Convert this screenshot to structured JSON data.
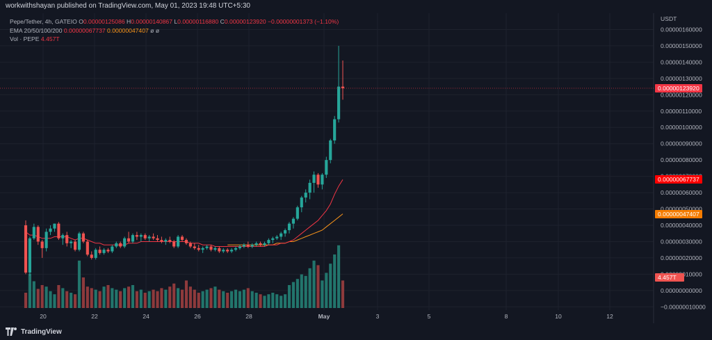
{
  "header": {
    "published": "workwithshayan published on TradingView.com, May 01, 2023 19:48 UTC+5:30"
  },
  "legend": {
    "symbol": "Pepe/Tether, 4h, GATEIO",
    "o_label": "O",
    "o_value": "0.00000125086",
    "h_label": "H",
    "h_value": "0.00000140867",
    "l_label": "L",
    "l_value": "0.00000116880",
    "c_label": "C",
    "c_value": "0.00000123920",
    "change": "−0.00000001373 (−1.10%)",
    "ema_label": "EMA 20/50/100/200",
    "ema_value1": "0.00000067737",
    "ema_value2": "0.00000047407",
    "ema_empty1": "ø",
    "ema_empty2": "ø",
    "vol_label": "Vol · PEPE",
    "vol_value": "4.457T"
  },
  "price_axis": {
    "currency": "USDT",
    "ticks": [
      "0.00000160000",
      "0.00000150000",
      "0.00000140000",
      "0.00000130000",
      "0.00000120000",
      "0.00000110000",
      "0.00000100000",
      "0.00000090000",
      "0.00000080000",
      "0.00000070000",
      "0.00000060000",
      "0.00000050000",
      "0.00000040000",
      "0.00000030000",
      "0.00000020000",
      "0.00000010000",
      "0.00000000000",
      "−0.00000010000"
    ]
  },
  "tags": {
    "last_price": "0.00000123920",
    "ema20": "0.00000067737",
    "ema50": "0.00000047407",
    "volume": "4.457T"
  },
  "colors": {
    "up": "#26a69a",
    "down": "#ef5350",
    "vol_up": "#22756c",
    "vol_down": "#8e3a3c",
    "ema20": "#f23645",
    "ema50": "#f7931a",
    "last_price_tag": "#f23645",
    "ema20_tag": "#ff0000",
    "ema50_tag": "#f57c00",
    "volume_tag": "#ef5350"
  },
  "footer": {
    "brand": "TradingView"
  },
  "chart_data": {
    "type": "candlestick",
    "timeframe": "4h",
    "x_ticks": [
      "20",
      "22",
      "24",
      "26",
      "28",
      "May",
      "3",
      "5",
      "8",
      "10",
      "12"
    ],
    "ylim": [
      -1.2e-07,
      1.7e-06
    ],
    "candles": [
      [
        4e-07,
        4.3e-07,
        1e-07,
        1.1e-07
      ],
      [
        1.1e-07,
        3.3e-07,
        9e-08,
        3.2e-07
      ],
      [
        3.2e-07,
        4.1e-07,
        3.1e-07,
        3.9e-07
      ],
      [
        3.9e-07,
        4e-07,
        2.8e-07,
        3e-07
      ],
      [
        3e-07,
        3.1e-07,
        2e-07,
        2.6e-07
      ],
      [
        2.6e-07,
        3.8e-07,
        2.4e-07,
        3.6e-07
      ],
      [
        3.6e-07,
        4e-07,
        3.4e-07,
        3.8e-07
      ],
      [
        3.8e-07,
        4.1e-07,
        3.6e-07,
        4.1e-07
      ],
      [
        4.1e-07,
        4.2e-07,
        3.1e-07,
        3.2e-07
      ],
      [
        3.2e-07,
        3.5e-07,
        2.8e-07,
        3.4e-07
      ],
      [
        3.4e-07,
        3.6e-07,
        2.7e-07,
        2.9e-07
      ],
      [
        2.9e-07,
        3.1e-07,
        2.6e-07,
        3e-07
      ],
      [
        3e-07,
        3.1e-07,
        2.4e-07,
        2.5e-07
      ],
      [
        2.5e-07,
        3.6e-07,
        2.4e-07,
        3.5e-07
      ],
      [
        3.5e-07,
        3.6e-07,
        2.9e-07,
        3e-07
      ],
      [
        3e-07,
        3.1e-07,
        2.1e-07,
        2.2e-07
      ],
      [
        2.2e-07,
        2.4e-07,
        1.9e-07,
        2e-07
      ],
      [
        2e-07,
        2.6e-07,
        1.9e-07,
        2.5e-07
      ],
      [
        2.5e-07,
        2.7e-07,
        2.2e-07,
        2.3e-07
      ],
      [
        2.3e-07,
        2.6e-07,
        2.2e-07,
        2.5e-07
      ],
      [
        2.5e-07,
        2.6e-07,
        2.3e-07,
        2.4e-07
      ],
      [
        2.4e-07,
        2.8e-07,
        2.3e-07,
        2.7e-07
      ],
      [
        2.7e-07,
        3e-07,
        2.6e-07,
        2.9e-07
      ],
      [
        2.9e-07,
        3e-07,
        2.6e-07,
        2.7e-07
      ],
      [
        2.7e-07,
        3.3e-07,
        2.6e-07,
        3.2e-07
      ],
      [
        3.2e-07,
        3.6e-07,
        2.9e-07,
        3e-07
      ],
      [
        3e-07,
        3.5e-07,
        2.9e-07,
        3.4e-07
      ],
      [
        3.4e-07,
        3.6e-07,
        3.1e-07,
        3.3e-07
      ],
      [
        3.3e-07,
        3.5e-07,
        3e-07,
        3.4e-07
      ],
      [
        3.4e-07,
        3.5e-07,
        3.1e-07,
        3.2e-07
      ],
      [
        3.2e-07,
        3.4e-07,
        3e-07,
        3.3e-07
      ],
      [
        3.3e-07,
        3.5e-07,
        3.1e-07,
        3.2e-07
      ],
      [
        3.2e-07,
        3.4e-07,
        3e-07,
        3.1e-07
      ],
      [
        3.1e-07,
        3.3e-07,
        2.9e-07,
        3e-07
      ],
      [
        3e-07,
        3.2e-07,
        2.8e-07,
        3.1e-07
      ],
      [
        3.1e-07,
        3.3e-07,
        2.9e-07,
        3e-07
      ],
      [
        3e-07,
        3.1e-07,
        2.6e-07,
        2.7e-07
      ],
      [
        2.7e-07,
        3.4e-07,
        2.6e-07,
        3.3e-07
      ],
      [
        3.3e-07,
        3.4e-07,
        3e-07,
        3.1e-07
      ],
      [
        3.1e-07,
        3.2e-07,
        2.8e-07,
        2.9e-07
      ],
      [
        2.9e-07,
        3e-07,
        2.6e-07,
        2.7e-07
      ],
      [
        2.7e-07,
        2.9e-07,
        2.5e-07,
        2.6e-07
      ],
      [
        2.6e-07,
        2.8e-07,
        2.4e-07,
        2.5e-07
      ],
      [
        2.5e-07,
        2.7e-07,
        2.3e-07,
        2.6e-07
      ],
      [
        2.6e-07,
        2.8e-07,
        2.5e-07,
        2.7e-07
      ],
      [
        2.7e-07,
        2.8e-07,
        2.4e-07,
        2.5e-07
      ],
      [
        2.5e-07,
        2.7e-07,
        2.4e-07,
        2.6e-07
      ],
      [
        2.6e-07,
        2.7e-07,
        2.3e-07,
        2.4e-07
      ],
      [
        2.4e-07,
        2.6e-07,
        2.3e-07,
        2.5e-07
      ],
      [
        2.5e-07,
        2.6e-07,
        2.3e-07,
        2.4e-07
      ],
      [
        2.4e-07,
        2.6e-07,
        2.3e-07,
        2.5e-07
      ],
      [
        2.5e-07,
        2.7e-07,
        2.4e-07,
        2.6e-07
      ],
      [
        2.6e-07,
        2.8e-07,
        2.5e-07,
        2.7e-07
      ],
      [
        2.7e-07,
        2.9e-07,
        2.6e-07,
        2.8e-07
      ],
      [
        2.8e-07,
        3e-07,
        2.6e-07,
        2.7e-07
      ],
      [
        2.7e-07,
        2.9e-07,
        2.6e-07,
        2.8e-07
      ],
      [
        2.8e-07,
        3e-07,
        2.7e-07,
        2.9e-07
      ],
      [
        2.9e-07,
        3e-07,
        2.7e-07,
        2.8e-07
      ],
      [
        2.8e-07,
        3e-07,
        2.7e-07,
        2.9e-07
      ],
      [
        2.9e-07,
        3.2e-07,
        2.8e-07,
        3.1e-07
      ],
      [
        3.1e-07,
        3.3e-07,
        2.9e-07,
        3.2e-07
      ],
      [
        3.2e-07,
        3.4e-07,
        3.1e-07,
        3.3e-07
      ],
      [
        3.3e-07,
        3.6e-07,
        3.1e-07,
        3.5e-07
      ],
      [
        3.5e-07,
        3.8e-07,
        3.3e-07,
        3.7e-07
      ],
      [
        3.7e-07,
        4.2e-07,
        3.5e-07,
        4.1e-07
      ],
      [
        4.1e-07,
        4.5e-07,
        3.8e-07,
        4.4e-07
      ],
      [
        4.4e-07,
        5.2e-07,
        4.3e-07,
        5.1e-07
      ],
      [
        5.1e-07,
        5.8e-07,
        4.8e-07,
        5.7e-07
      ],
      [
        5.7e-07,
        6.2e-07,
        5.4e-07,
        6e-07
      ],
      [
        6e-07,
        6.8e-07,
        5.6e-07,
        6.6e-07
      ],
      [
        6.6e-07,
        7.3e-07,
        6e-07,
        7.1e-07
      ],
      [
        7.1e-07,
        7.2e-07,
        6.3e-07,
        6.5e-07
      ],
      [
        6.5e-07,
        7.2e-07,
        6.2e-07,
        7.1e-07
      ],
      [
        7.1e-07,
        8.2e-07,
        6.9e-07,
        8e-07
      ],
      [
        8e-07,
        9.3e-07,
        7.8e-07,
        9.2e-07
      ],
      [
        9.2e-07,
        1.07e-06,
        9e-07,
        1.05e-06
      ],
      [
        1.05e-06,
        1.5e-06,
        1.03e-06,
        1.25e-06
      ],
      [
        1.25e-06,
        1.41e-06,
        1.17e-06,
        1.24e-06
      ]
    ],
    "volume": [
      0.2,
      0.45,
      0.35,
      0.25,
      0.3,
      0.28,
      0.22,
      0.18,
      0.3,
      0.26,
      0.22,
      0.2,
      0.18,
      0.62,
      0.4,
      0.28,
      0.26,
      0.24,
      0.22,
      0.28,
      0.3,
      0.26,
      0.24,
      0.22,
      0.26,
      0.28,
      0.3,
      0.22,
      0.24,
      0.2,
      0.22,
      0.24,
      0.22,
      0.26,
      0.24,
      0.28,
      0.32,
      0.26,
      0.24,
      0.36,
      0.28,
      0.24,
      0.2,
      0.22,
      0.24,
      0.26,
      0.28,
      0.24,
      0.22,
      0.2,
      0.22,
      0.24,
      0.22,
      0.24,
      0.26,
      0.22,
      0.2,
      0.18,
      0.16,
      0.18,
      0.2,
      0.18,
      0.16,
      0.18,
      0.3,
      0.34,
      0.38,
      0.44,
      0.42,
      0.52,
      0.62,
      0.56,
      0.36,
      0.46,
      0.58,
      0.7,
      0.82,
      0.36
    ],
    "ema20": [
      3.6e-07,
      3.4e-07,
      3.4e-07,
      3.3e-07,
      3.2e-07,
      3.2e-07,
      3.2e-07,
      3.3e-07,
      3.3e-07,
      3.3e-07,
      3.3e-07,
      3.2e-07,
      3.1e-07,
      3.2e-07,
      3.2e-07,
      3.1e-07,
      3e-07,
      2.9e-07,
      2.9e-07,
      2.8e-07,
      2.8e-07,
      2.8e-07,
      2.8e-07,
      2.8e-07,
      2.8e-07,
      2.9e-07,
      2.9e-07,
      2.9e-07,
      3e-07,
      3e-07,
      3e-07,
      3e-07,
      3e-07,
      3e-07,
      3e-07,
      3e-07,
      3e-07,
      3e-07,
      3e-07,
      3e-07,
      2.9e-07,
      2.9e-07,
      2.9e-07,
      2.8e-07,
      2.8e-07,
      2.8e-07,
      2.7e-07,
      2.7e-07,
      2.7e-07,
      2.7e-07,
      2.7e-07,
      2.7e-07,
      2.7e-07,
      2.7e-07,
      2.7e-07,
      2.7e-07,
      2.7e-07,
      2.7e-07,
      2.7e-07,
      2.8e-07,
      2.8e-07,
      2.8e-07,
      2.9e-07,
      2.9e-07,
      3e-07,
      3.1e-07,
      3.3e-07,
      3.5e-07,
      3.7e-07,
      3.9e-07,
      4.1e-07,
      4.3e-07,
      4.6e-07,
      4.9e-07,
      5.3e-07,
      5.9e-07,
      6.4e-07,
      6.8e-07
    ],
    "ema50": [
      null,
      null,
      null,
      null,
      null,
      null,
      null,
      null,
      null,
      null,
      null,
      null,
      null,
      null,
      null,
      null,
      null,
      null,
      null,
      null,
      null,
      null,
      null,
      null,
      null,
      null,
      null,
      null,
      null,
      null,
      null,
      null,
      null,
      null,
      null,
      null,
      null,
      null,
      null,
      null,
      null,
      null,
      null,
      null,
      null,
      null,
      null,
      null,
      null,
      2.8e-07,
      2.8e-07,
      2.8e-07,
      2.8e-07,
      2.8e-07,
      2.8e-07,
      2.8e-07,
      2.8e-07,
      2.8e-07,
      2.8e-07,
      2.8e-07,
      2.8e-07,
      2.9e-07,
      2.9e-07,
      2.9e-07,
      3e-07,
      3e-07,
      3.1e-07,
      3.2e-07,
      3.3e-07,
      3.4e-07,
      3.5e-07,
      3.6e-07,
      3.7e-07,
      3.9e-07,
      4.1e-07,
      4.3e-07,
      4.5e-07,
      4.7e-07
    ]
  }
}
